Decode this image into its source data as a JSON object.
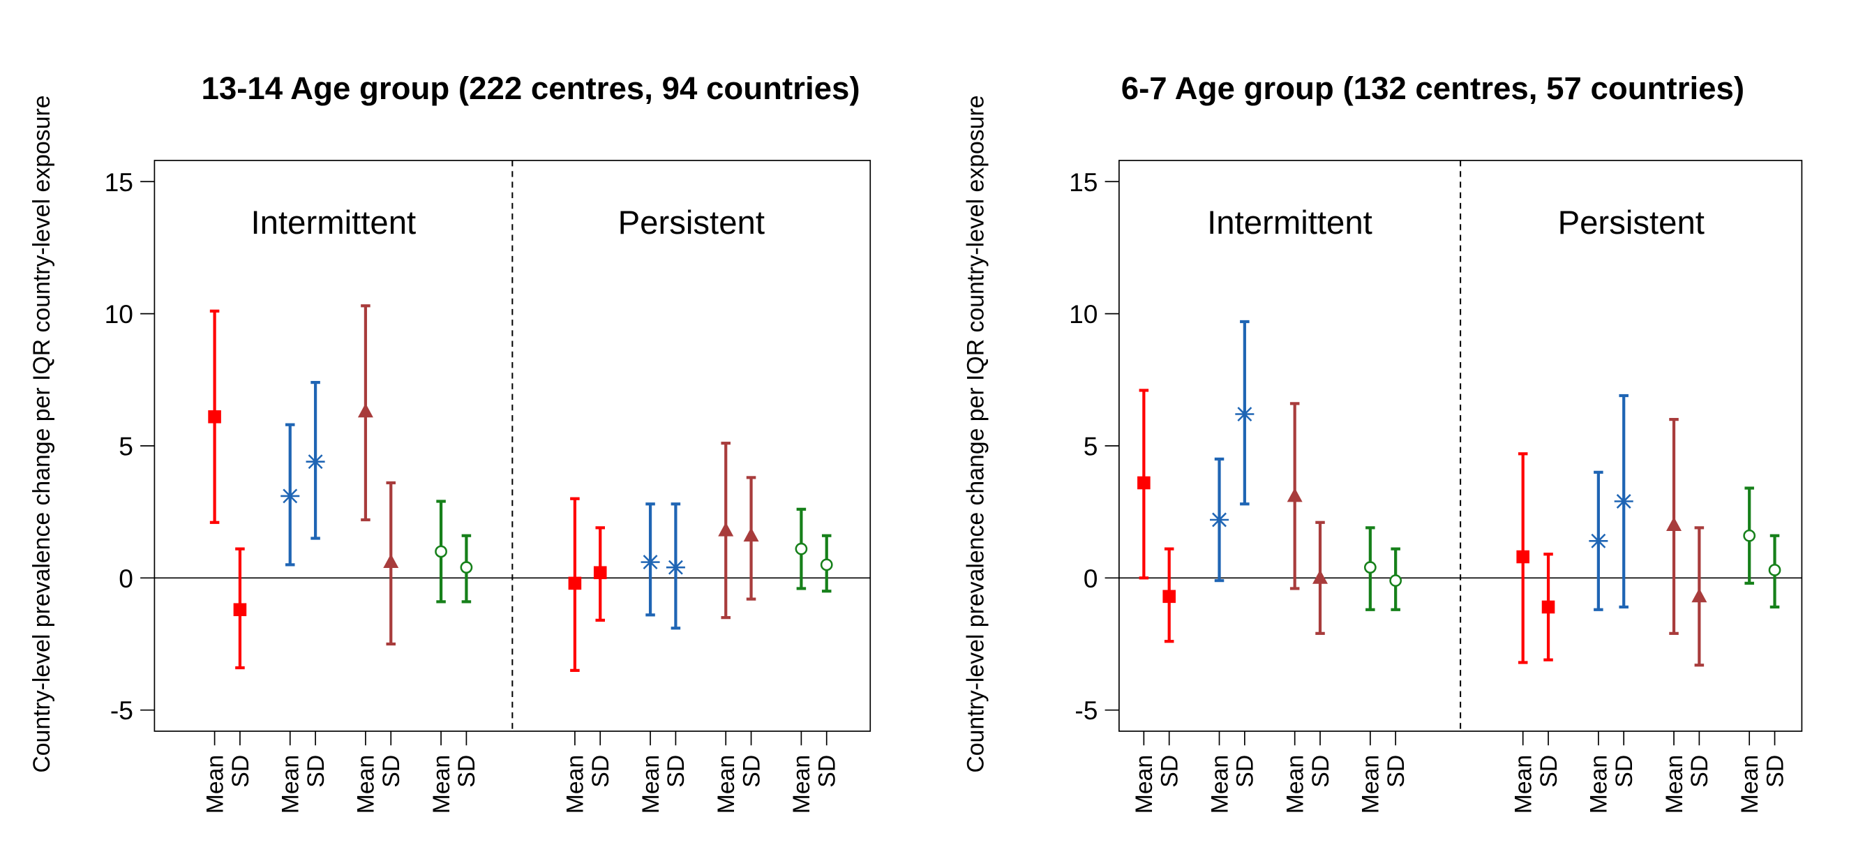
{
  "chart_data": [
    {
      "type": "errorbar",
      "title": "13-14 Age group (222 centres, 94 countries)",
      "ylabel": "Country-level prevalence change per IQR country-level exposure",
      "sections": [
        "Intermittent",
        "Persistent"
      ],
      "categories": [
        "Mean",
        "SD",
        "Mean",
        "SD",
        "Mean",
        "SD",
        "Mean",
        "SD",
        "Mean",
        "SD",
        "Mean",
        "SD",
        "Mean",
        "SD",
        "Mean",
        "SD"
      ],
      "ylim": [
        -5.8,
        15.8
      ],
      "yticks": [
        -5,
        0,
        5,
        10,
        15
      ],
      "refline": 0,
      "series": [
        {
          "color": "#ff0000",
          "marker": "square",
          "values": [
            6.1,
            -1.2,
            null,
            null,
            null,
            null,
            null,
            null,
            -0.2,
            0.2,
            null,
            null,
            null,
            null,
            null,
            null
          ],
          "lower": [
            2.1,
            -3.4,
            null,
            null,
            null,
            null,
            null,
            null,
            -3.5,
            -1.6,
            null,
            null,
            null,
            null,
            null,
            null
          ],
          "upper": [
            10.1,
            1.1,
            null,
            null,
            null,
            null,
            null,
            null,
            3.0,
            1.9,
            null,
            null,
            null,
            null,
            null,
            null
          ]
        },
        {
          "color": "#1f65b4",
          "marker": "asterisk",
          "values": [
            null,
            null,
            3.1,
            4.4,
            null,
            null,
            null,
            null,
            null,
            null,
            0.6,
            0.4,
            null,
            null,
            null,
            null
          ],
          "lower": [
            null,
            null,
            0.5,
            1.5,
            null,
            null,
            null,
            null,
            null,
            null,
            -1.4,
            -1.9,
            null,
            null,
            null,
            null
          ],
          "upper": [
            null,
            null,
            5.8,
            7.4,
            null,
            null,
            null,
            null,
            null,
            null,
            2.8,
            2.8,
            null,
            null,
            null,
            null
          ]
        },
        {
          "color": "#a83c3c",
          "marker": "triangle",
          "values": [
            null,
            null,
            null,
            null,
            6.3,
            0.6,
            null,
            null,
            null,
            null,
            null,
            null,
            1.8,
            1.6,
            null,
            null
          ],
          "lower": [
            null,
            null,
            null,
            null,
            2.2,
            -2.5,
            null,
            null,
            null,
            null,
            null,
            null,
            -1.5,
            -0.8,
            null,
            null
          ],
          "upper": [
            null,
            null,
            null,
            null,
            10.3,
            3.6,
            null,
            null,
            null,
            null,
            null,
            null,
            5.1,
            3.8,
            null,
            null
          ]
        },
        {
          "color": "#16801a",
          "marker": "circle",
          "values": [
            null,
            null,
            null,
            null,
            null,
            null,
            1.0,
            0.4,
            null,
            null,
            null,
            null,
            null,
            null,
            1.1,
            0.5
          ],
          "lower": [
            null,
            null,
            null,
            null,
            null,
            null,
            -0.9,
            -0.9,
            null,
            null,
            null,
            null,
            null,
            null,
            -0.4,
            -0.5
          ],
          "upper": [
            null,
            null,
            null,
            null,
            null,
            null,
            2.9,
            1.6,
            null,
            null,
            null,
            null,
            null,
            null,
            2.6,
            1.6
          ]
        }
      ]
    },
    {
      "type": "errorbar",
      "title": "6-7 Age group (132 centres, 57 countries)",
      "ylabel": "Country-level prevalence change per IQR country-level exposure",
      "sections": [
        "Intermittent",
        "Persistent"
      ],
      "categories": [
        "Mean",
        "SD",
        "Mean",
        "SD",
        "Mean",
        "SD",
        "Mean",
        "SD",
        "Mean",
        "SD",
        "Mean",
        "SD",
        "Mean",
        "SD",
        "Mean",
        "SD"
      ],
      "ylim": [
        -5.8,
        15.8
      ],
      "yticks": [
        -5,
        0,
        5,
        10,
        15
      ],
      "refline": 0,
      "series": [
        {
          "color": "#ff0000",
          "marker": "square",
          "values": [
            3.6,
            -0.7,
            null,
            null,
            null,
            null,
            null,
            null,
            0.8,
            -1.1,
            null,
            null,
            null,
            null,
            null,
            null
          ],
          "lower": [
            0.0,
            -2.4,
            null,
            null,
            null,
            null,
            null,
            null,
            -3.2,
            -3.1,
            null,
            null,
            null,
            null,
            null,
            null
          ],
          "upper": [
            7.1,
            1.1,
            null,
            null,
            null,
            null,
            null,
            null,
            4.7,
            0.9,
            null,
            null,
            null,
            null,
            null,
            null
          ]
        },
        {
          "color": "#1f65b4",
          "marker": "asterisk",
          "values": [
            null,
            null,
            2.2,
            6.2,
            null,
            null,
            null,
            null,
            null,
            null,
            1.4,
            2.9,
            null,
            null,
            null,
            null
          ],
          "lower": [
            null,
            null,
            -0.1,
            2.8,
            null,
            null,
            null,
            null,
            null,
            null,
            -1.2,
            -1.1,
            null,
            null,
            null,
            null
          ],
          "upper": [
            null,
            null,
            4.5,
            9.7,
            null,
            null,
            null,
            null,
            null,
            null,
            4.0,
            6.9,
            null,
            null,
            null,
            null
          ]
        },
        {
          "color": "#a83c3c",
          "marker": "triangle",
          "values": [
            null,
            null,
            null,
            null,
            3.1,
            0.0,
            null,
            null,
            null,
            null,
            null,
            null,
            2.0,
            -0.7,
            null,
            null
          ],
          "lower": [
            null,
            null,
            null,
            null,
            -0.4,
            -2.1,
            null,
            null,
            null,
            null,
            null,
            null,
            -2.1,
            -3.3,
            null,
            null
          ],
          "upper": [
            null,
            null,
            null,
            null,
            6.6,
            2.1,
            null,
            null,
            null,
            null,
            null,
            null,
            6.0,
            1.9,
            null,
            null
          ]
        },
        {
          "color": "#16801a",
          "marker": "circle",
          "values": [
            null,
            null,
            null,
            null,
            null,
            null,
            0.4,
            -0.1,
            null,
            null,
            null,
            null,
            null,
            null,
            1.6,
            0.3
          ],
          "lower": [
            null,
            null,
            null,
            null,
            null,
            null,
            -1.2,
            -1.2,
            null,
            null,
            null,
            null,
            null,
            null,
            -0.2,
            -1.1
          ],
          "upper": [
            null,
            null,
            null,
            null,
            null,
            null,
            1.9,
            1.1,
            null,
            null,
            null,
            null,
            null,
            null,
            3.4,
            1.6
          ]
        }
      ]
    }
  ]
}
